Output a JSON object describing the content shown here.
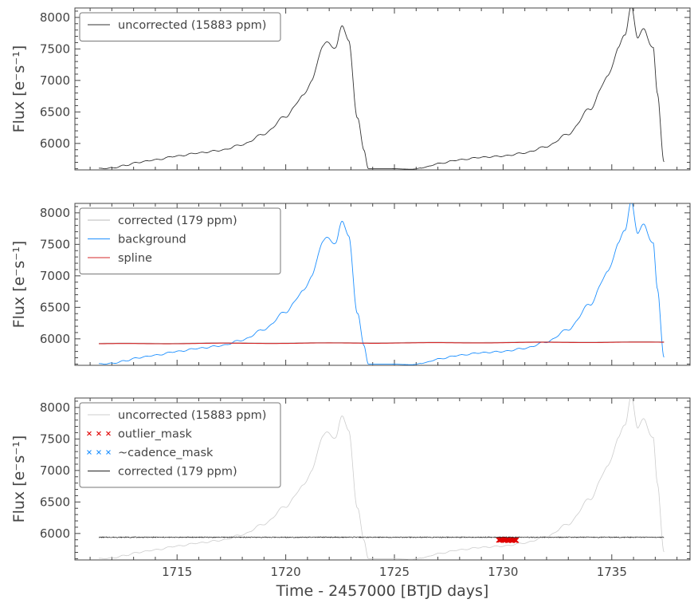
{
  "chart_data": [
    {
      "type": "line",
      "ylabel": "Flux [e⁻s⁻¹]",
      "xlim": [
        1710.3,
        1738.6
      ],
      "ylim": [
        5580,
        8150
      ],
      "yticks": [
        6000,
        6500,
        7000,
        7500,
        8000
      ],
      "legend": {
        "placement": "top-left"
      },
      "series": [
        {
          "name": "uncorrected (15883 ppm)",
          "role": "background_curve",
          "color": "#333333"
        }
      ]
    },
    {
      "type": "line",
      "ylabel": "Flux [e⁻s⁻¹]",
      "xlim": [
        1710.3,
        1738.6
      ],
      "ylim": [
        5580,
        8150
      ],
      "yticks": [
        6000,
        6500,
        7000,
        7500,
        8000
      ],
      "legend": {
        "placement": "top-left"
      },
      "series": [
        {
          "name": "corrected (179 ppm)",
          "role": "corrected_curve",
          "color": "#b8b8b8"
        },
        {
          "name": "background",
          "role": "background_curve",
          "color": "#1e90ff"
        },
        {
          "name": "spline",
          "role": "spline",
          "color": "#d62728"
        }
      ]
    },
    {
      "type": "line",
      "ylabel": "Flux [e⁻s⁻¹]",
      "xlabel": "Time - 2457000 [BTJD days]",
      "xlim": [
        1710.3,
        1738.6
      ],
      "ylim": [
        5580,
        8150
      ],
      "xticks": [
        1715,
        1720,
        1725,
        1730,
        1735
      ],
      "yticks": [
        6000,
        6500,
        7000,
        7500,
        8000
      ],
      "legend": {
        "placement": "top-left"
      },
      "series": [
        {
          "name": "uncorrected (15883 ppm)",
          "role": "background_curve",
          "color": "#cccccc"
        },
        {
          "name": "outlier_mask",
          "role": "outliers",
          "color": "#e00000",
          "marker": "x",
          "x_range": [
            1729.8,
            1730.6
          ],
          "y": 5900
        },
        {
          "name": "~cadence_mask",
          "role": "cadence",
          "color": "#1e90ff",
          "marker": "x"
        },
        {
          "name": "corrected (179 ppm)",
          "role": "corrected_curve",
          "color": "#222222"
        }
      ]
    }
  ],
  "curves": {
    "background_anchors": [
      [
        1711.4,
        5600
      ],
      [
        1712.0,
        5610
      ],
      [
        1712.6,
        5650
      ],
      [
        1713.2,
        5700
      ],
      [
        1714.0,
        5740
      ],
      [
        1715.0,
        5800
      ],
      [
        1716.0,
        5850
      ],
      [
        1717.0,
        5890
      ],
      [
        1718.0,
        5980
      ],
      [
        1719.0,
        6150
      ],
      [
        1720.0,
        6430
      ],
      [
        1720.8,
        6750
      ],
      [
        1721.2,
        7000
      ],
      [
        1721.7,
        7550
      ],
      [
        1722.0,
        7600
      ],
      [
        1722.3,
        7500
      ],
      [
        1722.6,
        7900
      ],
      [
        1722.9,
        7600
      ],
      [
        1723.3,
        6400
      ],
      [
        1723.6,
        5900
      ],
      [
        1723.8,
        5600
      ],
      [
        1724.8,
        5600
      ],
      [
        1725.8,
        5590
      ],
      [
        1726.4,
        5620
      ],
      [
        1727.0,
        5680
      ],
      [
        1728.0,
        5740
      ],
      [
        1729.0,
        5780
      ],
      [
        1730.0,
        5800
      ],
      [
        1731.0,
        5850
      ],
      [
        1732.0,
        5950
      ],
      [
        1733.0,
        6150
      ],
      [
        1734.0,
        6550
      ],
      [
        1734.8,
        7050
      ],
      [
        1735.3,
        7500
      ],
      [
        1735.6,
        7750
      ],
      [
        1735.9,
        8150
      ],
      [
        1736.2,
        7700
      ],
      [
        1736.5,
        7800
      ],
      [
        1736.9,
        7500
      ],
      [
        1737.1,
        6800
      ],
      [
        1737.4,
        5700
      ]
    ],
    "spline_anchors": [
      [
        1711.4,
        5920
      ],
      [
        1714.0,
        5925
      ],
      [
        1720.0,
        5930
      ],
      [
        1726.0,
        5935
      ],
      [
        1730.0,
        5940
      ],
      [
        1734.0,
        5945
      ],
      [
        1737.4,
        5945
      ]
    ],
    "corrected_level": 5940
  }
}
